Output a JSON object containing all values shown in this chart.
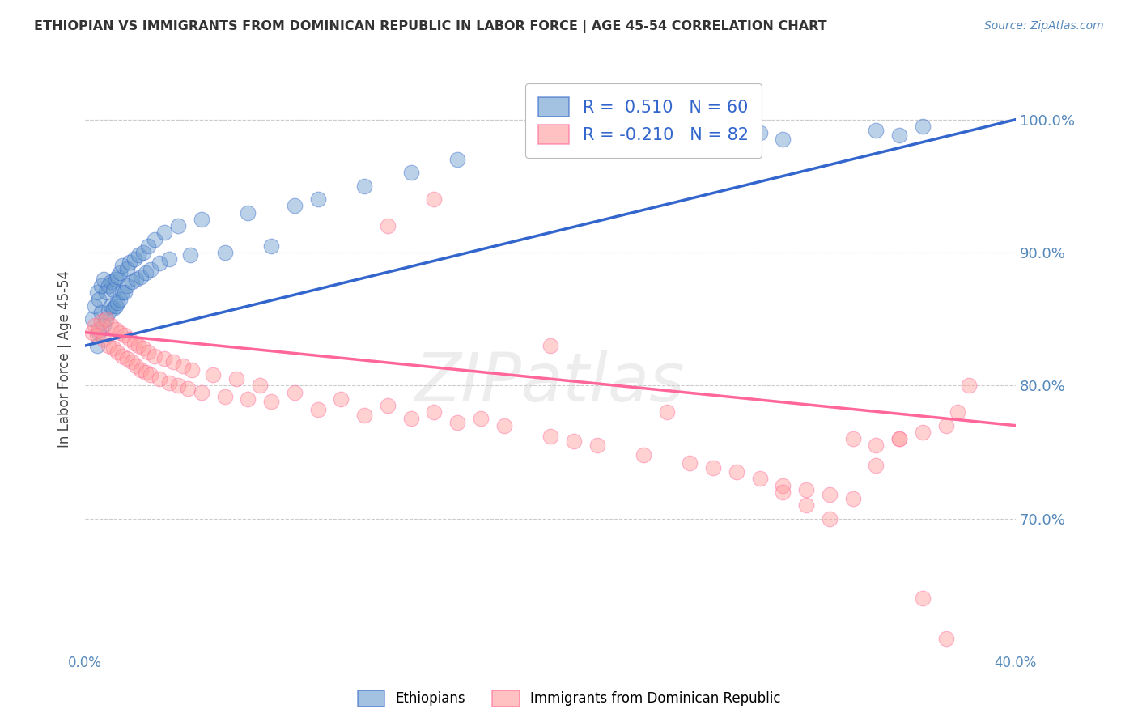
{
  "title": "ETHIOPIAN VS IMMIGRANTS FROM DOMINICAN REPUBLIC IN LABOR FORCE | AGE 45-54 CORRELATION CHART",
  "source": "Source: ZipAtlas.com",
  "ylabel": "In Labor Force | Age 45-54",
  "xlim": [
    0.0,
    0.4
  ],
  "ylim": [
    0.6,
    1.04
  ],
  "yticks": [
    0.7,
    0.8,
    0.9,
    1.0
  ],
  "ytick_labels": [
    "70.0%",
    "80.0%",
    "90.0%",
    "100.0%"
  ],
  "xticks": [
    0.0,
    0.1,
    0.2,
    0.3,
    0.4
  ],
  "xtick_labels": [
    "0.0%",
    "",
    "",
    "",
    "40.0%"
  ],
  "blue_R": 0.51,
  "blue_N": 60,
  "pink_R": -0.21,
  "pink_N": 82,
  "blue_color": "#6699CC",
  "pink_color": "#FF9999",
  "blue_line_color": "#3366CC",
  "pink_line_color": "#FF6699",
  "legend_text_color": "#3366CC",
  "axis_color": "#5588BB",
  "grid_color": "#CCCCCC",
  "title_color": "#333333",
  "blue_scatter_x": [
    0.003,
    0.004,
    0.005,
    0.005,
    0.006,
    0.006,
    0.007,
    0.007,
    0.008,
    0.008,
    0.009,
    0.009,
    0.01,
    0.01,
    0.011,
    0.011,
    0.012,
    0.012,
    0.013,
    0.013,
    0.014,
    0.014,
    0.015,
    0.015,
    0.016,
    0.016,
    0.017,
    0.018,
    0.018,
    0.019,
    0.02,
    0.021,
    0.022,
    0.023,
    0.024,
    0.025,
    0.026,
    0.027,
    0.028,
    0.03,
    0.032,
    0.034,
    0.036,
    0.04,
    0.045,
    0.05,
    0.06,
    0.07,
    0.08,
    0.09,
    0.1,
    0.12,
    0.14,
    0.16,
    0.28,
    0.29,
    0.3,
    0.34,
    0.35,
    0.36
  ],
  "blue_scatter_y": [
    0.85,
    0.86,
    0.83,
    0.87,
    0.84,
    0.865,
    0.855,
    0.875,
    0.845,
    0.88,
    0.85,
    0.87,
    0.855,
    0.875,
    0.86,
    0.878,
    0.858,
    0.872,
    0.86,
    0.88,
    0.862,
    0.882,
    0.865,
    0.885,
    0.87,
    0.89,
    0.87,
    0.888,
    0.875,
    0.893,
    0.878,
    0.895,
    0.88,
    0.898,
    0.882,
    0.9,
    0.885,
    0.905,
    0.887,
    0.91,
    0.892,
    0.915,
    0.895,
    0.92,
    0.898,
    0.925,
    0.9,
    0.93,
    0.905,
    0.935,
    0.94,
    0.95,
    0.96,
    0.97,
    0.98,
    0.99,
    0.985,
    0.992,
    0.988,
    0.995
  ],
  "pink_scatter_x": [
    0.003,
    0.004,
    0.005,
    0.006,
    0.007,
    0.008,
    0.009,
    0.01,
    0.011,
    0.012,
    0.013,
    0.014,
    0.015,
    0.016,
    0.017,
    0.018,
    0.019,
    0.02,
    0.021,
    0.022,
    0.023,
    0.024,
    0.025,
    0.026,
    0.027,
    0.028,
    0.03,
    0.032,
    0.034,
    0.036,
    0.038,
    0.04,
    0.042,
    0.044,
    0.046,
    0.05,
    0.055,
    0.06,
    0.065,
    0.07,
    0.075,
    0.08,
    0.09,
    0.1,
    0.11,
    0.12,
    0.13,
    0.14,
    0.15,
    0.16,
    0.17,
    0.18,
    0.2,
    0.21,
    0.22,
    0.24,
    0.26,
    0.27,
    0.28,
    0.29,
    0.3,
    0.31,
    0.32,
    0.33,
    0.34,
    0.35,
    0.36,
    0.37,
    0.375,
    0.38,
    0.13,
    0.15,
    0.2,
    0.25,
    0.3,
    0.31,
    0.32,
    0.33,
    0.34,
    0.35,
    0.36,
    0.37
  ],
  "pink_scatter_y": [
    0.84,
    0.845,
    0.838,
    0.842,
    0.848,
    0.835,
    0.85,
    0.83,
    0.845,
    0.828,
    0.842,
    0.825,
    0.84,
    0.822,
    0.838,
    0.82,
    0.835,
    0.818,
    0.832,
    0.815,
    0.83,
    0.812,
    0.828,
    0.81,
    0.825,
    0.808,
    0.822,
    0.805,
    0.82,
    0.802,
    0.818,
    0.8,
    0.815,
    0.798,
    0.812,
    0.795,
    0.808,
    0.792,
    0.805,
    0.79,
    0.8,
    0.788,
    0.795,
    0.782,
    0.79,
    0.778,
    0.785,
    0.775,
    0.78,
    0.772,
    0.775,
    0.77,
    0.762,
    0.758,
    0.755,
    0.748,
    0.742,
    0.738,
    0.735,
    0.73,
    0.725,
    0.722,
    0.718,
    0.715,
    0.755,
    0.76,
    0.765,
    0.77,
    0.78,
    0.8,
    0.92,
    0.94,
    0.83,
    0.78,
    0.72,
    0.71,
    0.7,
    0.76,
    0.74,
    0.76,
    0.64,
    0.61
  ]
}
